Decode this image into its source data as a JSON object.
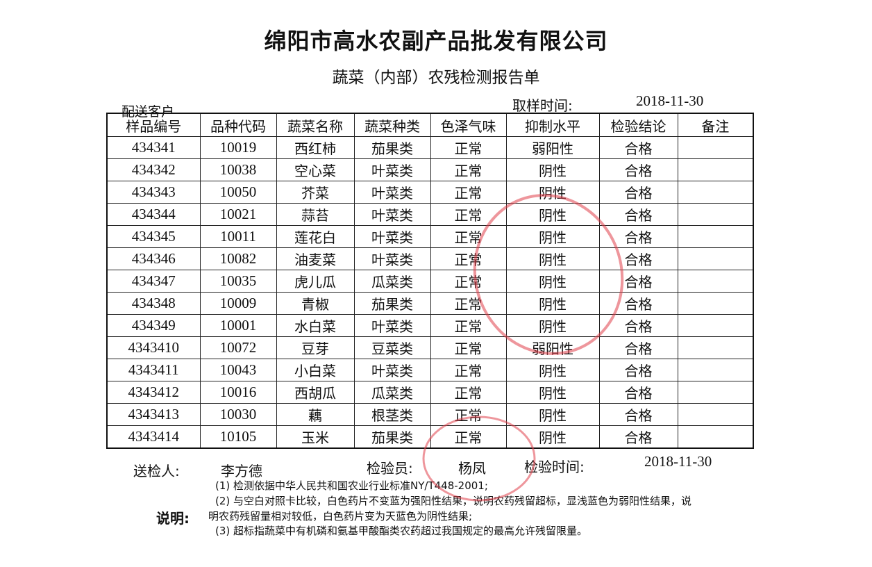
{
  "title": "绵阳市高水农副产品批发有限公司",
  "subtitle": "蔬菜（内部）农残检测报告单",
  "customer_label": "配送客户",
  "sampling_time_label": "取样时间:",
  "sampling_time": "2018-11-30",
  "table": {
    "headers": [
      "样品编号",
      "品种代码",
      "蔬菜名称",
      "蔬菜种类",
      "色泽气味",
      "抑制水平",
      "检验结论",
      "备注"
    ],
    "rows": [
      [
        "434341",
        "10019",
        "西红柿",
        "茄果类",
        "正常",
        "弱阳性",
        "合格",
        ""
      ],
      [
        "434342",
        "10038",
        "空心菜",
        "叶菜类",
        "正常",
        "阴性",
        "合格",
        ""
      ],
      [
        "434343",
        "10050",
        "芥菜",
        "叶菜类",
        "正常",
        "阴性",
        "合格",
        ""
      ],
      [
        "434344",
        "10021",
        "蒜苔",
        "叶菜类",
        "正常",
        "阴性",
        "合格",
        ""
      ],
      [
        "434345",
        "10011",
        "莲花白",
        "叶菜类",
        "正常",
        "阴性",
        "合格",
        ""
      ],
      [
        "434346",
        "10082",
        "油麦菜",
        "叶菜类",
        "正常",
        "阴性",
        "合格",
        ""
      ],
      [
        "434347",
        "10035",
        "虎儿瓜",
        "瓜菜类",
        "正常",
        "阴性",
        "合格",
        ""
      ],
      [
        "434348",
        "10009",
        "青椒",
        "茄果类",
        "正常",
        "阴性",
        "合格",
        ""
      ],
      [
        "434349",
        "10001",
        "水白菜",
        "叶菜类",
        "正常",
        "阴性",
        "合格",
        ""
      ],
      [
        "4343410",
        "10072",
        "豆芽",
        "豆菜类",
        "正常",
        "弱阳性",
        "合格",
        ""
      ],
      [
        "4343411",
        "10043",
        "小白菜",
        "叶菜类",
        "正常",
        "阴性",
        "合格",
        ""
      ],
      [
        "4343412",
        "10016",
        "西胡瓜",
        "瓜菜类",
        "正常",
        "阴性",
        "合格",
        ""
      ],
      [
        "4343413",
        "10030",
        "藕",
        "根茎类",
        "正常",
        "阴性",
        "合格",
        ""
      ],
      [
        "4343414",
        "10105",
        "玉米",
        "茄果类",
        "正常",
        "阴性",
        "合格",
        ""
      ]
    ]
  },
  "footer": {
    "submitter_label": "送检人:",
    "submitter": "李方德",
    "inspector_label": "检验员:",
    "inspector": "杨凤",
    "inspection_time_label": "检验时间:",
    "inspection_time": "2018-11-30"
  },
  "notes": {
    "label": "说明:",
    "line1": "(1) 检测依据中华人民共和国农业行业标准NY/T448-2001;",
    "line2": "(2) 与空白对照卡比较，白色药片不变蓝为强阳性结果，说明农药残留超标，显浅蓝色为弱阳性结果，说",
    "line3": "明农药残留量相对较低，白色药片变为天蓝色为阴性结果;",
    "line4": "(3) 超标指蔬菜中有机磷和氨基甲酸酯类农药超过我国规定的最高允许残留限量。"
  },
  "stamp_color": "#e0404a"
}
